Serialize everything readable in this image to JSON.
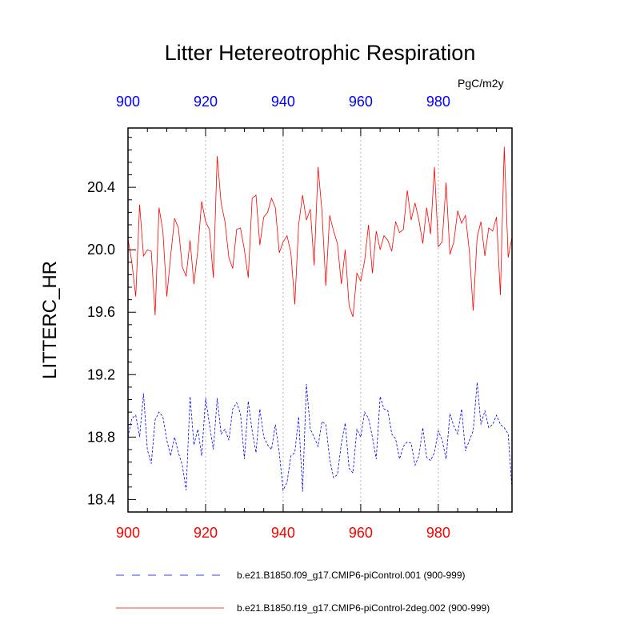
{
  "chart_data": {
    "type": "line",
    "title": "Litter Hetereotrophic Respiration",
    "units": "PgC/m2y",
    "ylabel": "LITTERC_HR",
    "xlabel": "",
    "xlim": [
      900,
      999
    ],
    "ylim": [
      18.32,
      20.78
    ],
    "x_ticks": [
      900,
      920,
      940,
      960,
      980
    ],
    "x_tick_labels": [
      "900",
      "920",
      "940",
      "960",
      "980"
    ],
    "y_ticks": [
      18.4,
      18.8,
      19.2,
      19.6,
      20.0,
      20.4
    ],
    "y_tick_labels": [
      "18.4",
      "18.8",
      "19.2",
      "19.6",
      "20.0",
      "20.4"
    ],
    "top_axis_color": "#0000ff",
    "bottom_axis_color": "#ff0000",
    "vertical_gridlines": [
      920,
      940,
      960,
      980
    ],
    "x": [
      900,
      901,
      902,
      903,
      904,
      905,
      906,
      907,
      908,
      909,
      910,
      911,
      912,
      913,
      914,
      915,
      916,
      917,
      918,
      919,
      920,
      921,
      922,
      923,
      924,
      925,
      926,
      927,
      928,
      929,
      930,
      931,
      932,
      933,
      934,
      935,
      936,
      937,
      938,
      939,
      940,
      941,
      942,
      943,
      944,
      945,
      946,
      947,
      948,
      949,
      950,
      951,
      952,
      953,
      954,
      955,
      956,
      957,
      958,
      959,
      960,
      961,
      962,
      963,
      964,
      965,
      966,
      967,
      968,
      969,
      970,
      971,
      972,
      973,
      974,
      975,
      976,
      977,
      978,
      979,
      980,
      981,
      982,
      983,
      984,
      985,
      986,
      987,
      988,
      989,
      990,
      991,
      992,
      993,
      994,
      995,
      996,
      997,
      998,
      999
    ],
    "series": [
      {
        "name": "b.e21.B1850.f09_g17.CMIP6-piControl.001 (900-999)",
        "color": "#0000ff",
        "style": "dashed",
        "values": [
          18.8,
          18.92,
          18.94,
          18.8,
          19.08,
          18.72,
          18.63,
          18.91,
          18.96,
          18.93,
          18.78,
          18.68,
          18.8,
          18.7,
          18.62,
          18.46,
          19.06,
          18.75,
          18.85,
          18.68,
          19.05,
          18.88,
          18.72,
          19.05,
          18.82,
          18.85,
          18.78,
          18.98,
          19.02,
          18.95,
          18.66,
          19.03,
          18.84,
          18.7,
          18.98,
          18.8,
          18.75,
          18.72,
          18.88,
          18.7,
          18.46,
          18.51,
          18.68,
          18.7,
          18.93,
          18.45,
          19.14,
          18.85,
          18.8,
          18.74,
          18.9,
          18.88,
          18.66,
          18.54,
          18.56,
          18.76,
          18.89,
          18.6,
          18.57,
          18.85,
          18.8,
          18.96,
          18.92,
          18.8,
          18.66,
          19.06,
          18.98,
          18.97,
          18.82,
          18.79,
          18.66,
          18.74,
          18.77,
          18.76,
          18.62,
          18.68,
          18.86,
          18.67,
          18.65,
          18.7,
          18.84,
          18.78,
          18.66,
          18.95,
          18.87,
          18.82,
          18.98,
          18.71,
          18.78,
          18.84,
          19.15,
          18.88,
          18.97,
          18.86,
          18.88,
          18.94,
          18.88,
          18.86,
          18.82,
          18.47
        ]
      },
      {
        "name": "b.e21.B1850.f19_g17.CMIP6-piControl-2deg.002 (900-999)",
        "color": "#ff0000",
        "style": "solid",
        "values": [
          20.07,
          19.92,
          19.7,
          20.29,
          19.96,
          20.0,
          19.99,
          19.58,
          20.27,
          20.12,
          19.7,
          19.96,
          20.2,
          20.14,
          19.89,
          19.83,
          20.06,
          19.78,
          20.0,
          20.31,
          20.18,
          20.13,
          19.82,
          20.6,
          20.3,
          20.18,
          19.95,
          19.88,
          20.13,
          20.14,
          20.0,
          19.82,
          20.33,
          20.35,
          20.03,
          20.21,
          20.24,
          20.33,
          20.27,
          19.98,
          20.05,
          20.09,
          19.98,
          19.65,
          20.16,
          20.35,
          20.19,
          20.26,
          19.9,
          20.53,
          20.25,
          19.77,
          20.22,
          20.12,
          20.04,
          19.78,
          20.0,
          19.64,
          19.57,
          19.85,
          19.8,
          19.93,
          20.16,
          19.85,
          20.12,
          20.0,
          20.09,
          20.06,
          19.99,
          20.18,
          20.11,
          20.13,
          20.38,
          20.19,
          20.3,
          20.19,
          20.04,
          20.27,
          20.1,
          20.53,
          20.02,
          20.05,
          20.43,
          19.97,
          20.05,
          20.25,
          20.17,
          20.22,
          19.99,
          19.61,
          20.08,
          20.18,
          19.96,
          20.14,
          20.12,
          20.21,
          19.71,
          20.66,
          19.95,
          20.08
        ]
      }
    ],
    "legend": {
      "placement": "bottom",
      "entries": [
        "b.e21.B1850.f09_g17.CMIP6-piControl.001 (900-999)",
        "b.e21.B1850.f19_g17.CMIP6-piControl-2deg.002 (900-999)"
      ]
    }
  }
}
